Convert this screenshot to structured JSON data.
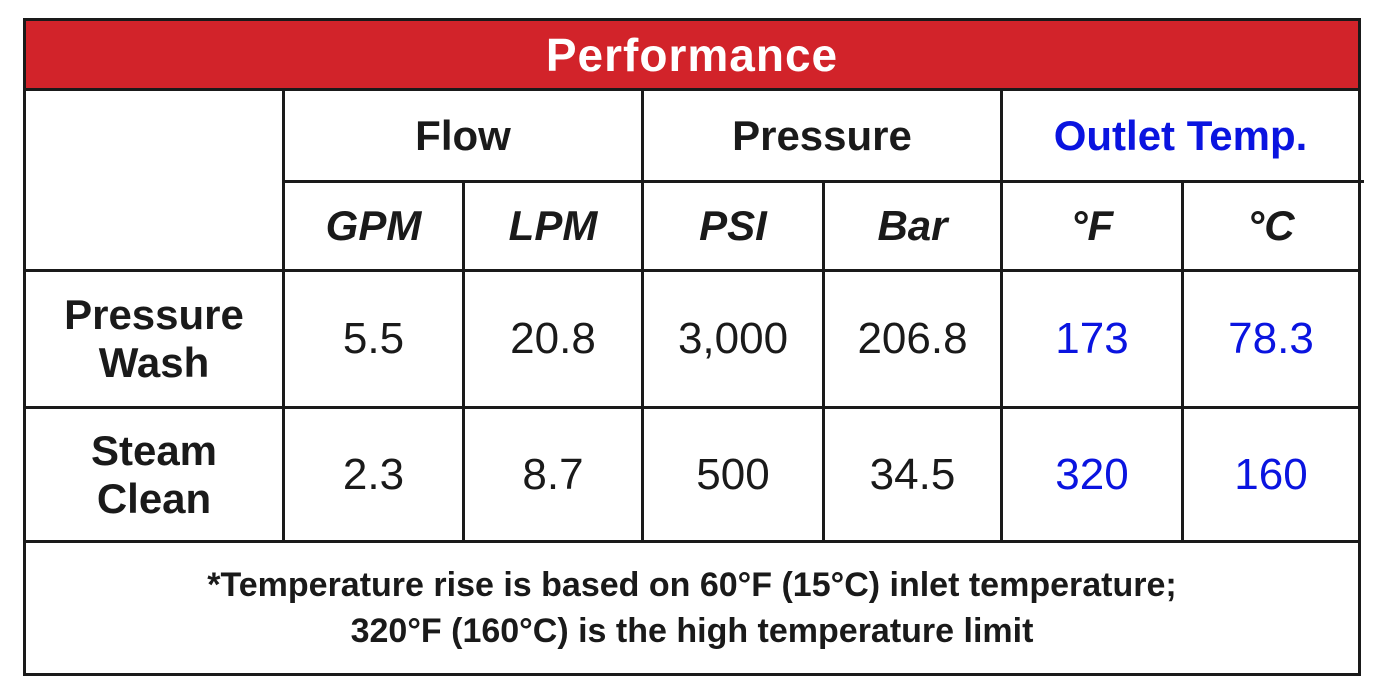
{
  "title": "Performance",
  "groups": {
    "flow": "Flow",
    "pressure": "Pressure",
    "outlet_temp": "Outlet Temp."
  },
  "units": {
    "gpm": "GPM",
    "lpm": "LPM",
    "psi": "PSI",
    "bar": "Bar",
    "deg_f": "°F",
    "deg_c": "°C"
  },
  "rows": [
    {
      "label_line1": "Pressure",
      "label_line2": "Wash",
      "gpm": "5.5",
      "lpm": "20.8",
      "psi": "3,000",
      "bar": "206.8",
      "deg_f": "173",
      "deg_c": "78.3"
    },
    {
      "label_line1": "Steam",
      "label_line2": "Clean",
      "gpm": "2.3",
      "lpm": "8.7",
      "psi": "500",
      "bar": "34.5",
      "deg_f": "320",
      "deg_c": "160"
    }
  ],
  "footnote": {
    "line1": "*Temperature rise is based on 60°F (15°C) inlet temperature;",
    "line2": "320°F (160°C) is the high temperature limit"
  },
  "colors": {
    "title_background": "#d2232a",
    "title_text": "#ffffff",
    "outlet_temp_text": "#0a14e0",
    "border": "#1a1a1a"
  }
}
